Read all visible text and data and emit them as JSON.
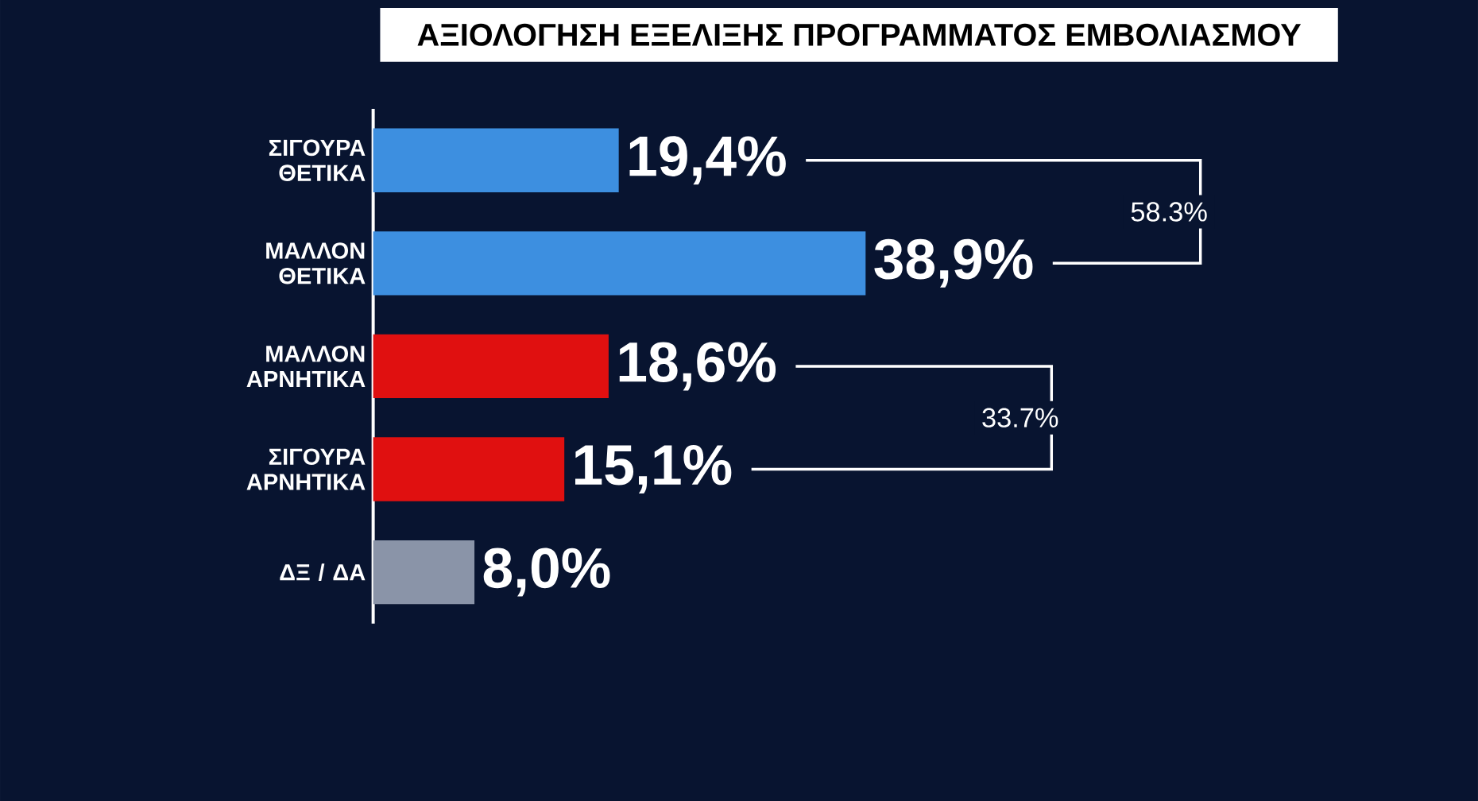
{
  "chart_data": {
    "type": "bar",
    "orientation": "horizontal",
    "title": "ΑΞΙΟΛΟΓΗΣΗ ΕΞΕΛΙΞΗΣ ΠΡΟΓΡΑΜΜΑΤΟΣ ΕΜΒΟΛΙΑΣΜΟΥ",
    "categories": [
      "ΣΙΓΟΥΡΑ ΘΕΤΙΚΑ",
      "ΜΑΛΛΟΝ ΘΕΤΙΚΑ",
      "ΜΑΛΛΟΝ ΑΡΝΗΤΙΚΑ",
      "ΣΙΓΟΥΡΑ ΑΡΝΗΤΙΚΑ",
      "ΔΞ / ΔΑ"
    ],
    "values": [
      19.4,
      38.9,
      18.6,
      15.1,
      8.0
    ],
    "colors": [
      "#3d8fe0",
      "#3d8fe0",
      "#e01010",
      "#e01010",
      "#8a94a8"
    ],
    "value_labels": [
      "19,4%",
      "38,9%",
      "18,6%",
      "15,1%",
      "8,0%"
    ],
    "annotations": [
      "58.3%",
      "33.7%"
    ]
  }
}
